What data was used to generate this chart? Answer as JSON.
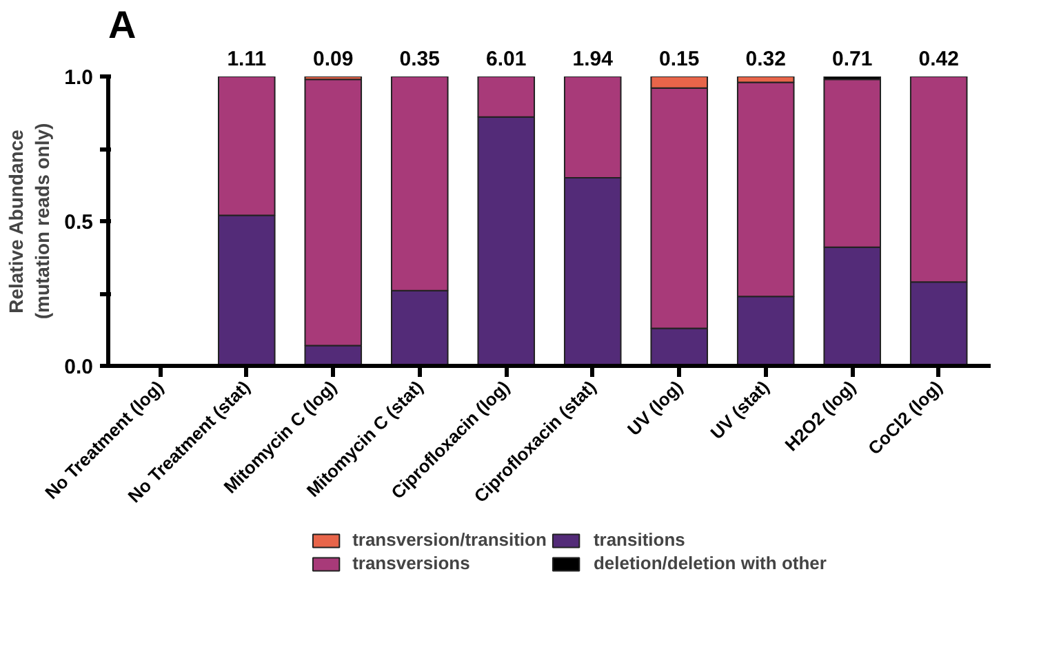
{
  "chart_data": {
    "type": "bar",
    "stacked": true,
    "ylabel": "Relative Abundance\n(mutation reads only)",
    "categories": [
      "No Treatment (log)",
      "No Treatment (stat)",
      "Mitomycin C (log)",
      "Mitomycin C (stat)",
      "Ciprofloxacin (log)",
      "Ciprofloxacin (stat)",
      "UV (log)",
      "UV (stat)",
      "H2O2 (log)",
      "CoCl2 (log)"
    ],
    "series": [
      {
        "name": "transitions",
        "color": "#532b78",
        "values": [
          0,
          0.52,
          0.07,
          0.26,
          0.86,
          0.65,
          0.13,
          0.24,
          0.41,
          0.29
        ]
      },
      {
        "name": "transversions",
        "color": "#a83a79",
        "values": [
          0,
          0.48,
          0.92,
          0.74,
          0.14,
          0.35,
          0.83,
          0.74,
          0.58,
          0.71
        ]
      },
      {
        "name": "transversion/transition",
        "color": "#e8654a",
        "values": [
          0,
          0,
          0.01,
          0,
          0,
          0,
          0.04,
          0.02,
          0,
          0
        ]
      },
      {
        "name": "deletion/deletion with other",
        "color": "#000000",
        "values": [
          0,
          0,
          0,
          0,
          0,
          0,
          0,
          0,
          0.01,
          0
        ]
      }
    ],
    "ylim": [
      0,
      1
    ],
    "yticks": [
      {
        "value": 0,
        "label": "0.0"
      },
      {
        "value": 0.25,
        "label": null
      },
      {
        "value": 0.5,
        "label": "0.5"
      },
      {
        "value": 0.75,
        "label": null
      },
      {
        "value": 1,
        "label": "1.0"
      }
    ],
    "grid": false,
    "legend": "bottom",
    "annotations": [
      "A",
      "1.11",
      "0.09",
      "0.35",
      "6.01",
      "1.94",
      "0.15",
      "0.32",
      "0.71",
      "0.42"
    ]
  }
}
